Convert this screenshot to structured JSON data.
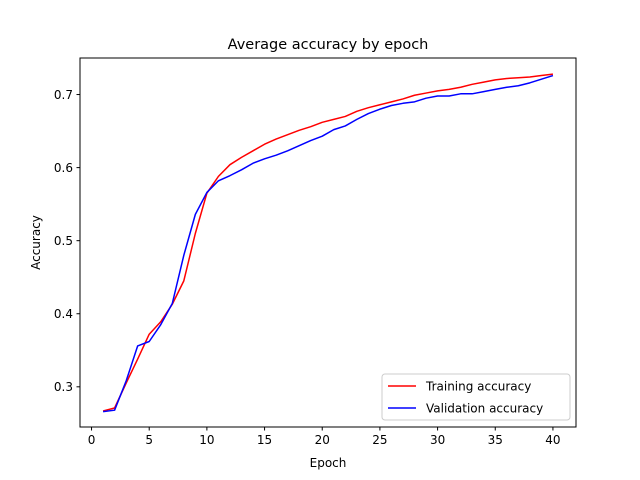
{
  "chart_data": {
    "type": "line",
    "title": "Average accuracy by epoch",
    "xlabel": "Epoch",
    "ylabel": "Accuracy",
    "xlim": [
      -1,
      42
    ],
    "ylim": [
      0.245,
      0.75
    ],
    "xticks": [
      0,
      5,
      10,
      15,
      20,
      25,
      30,
      35,
      40
    ],
    "yticks": [
      0.3,
      0.4,
      0.5,
      0.6,
      0.7
    ],
    "ytick_labels": [
      "0.3",
      "0.4",
      "0.5",
      "0.6",
      "0.7"
    ],
    "grid": false,
    "legend_position": "lower-right",
    "x": [
      1,
      2,
      3,
      4,
      5,
      6,
      7,
      8,
      9,
      10,
      11,
      12,
      13,
      14,
      15,
      16,
      17,
      18,
      19,
      20,
      21,
      22,
      23,
      24,
      25,
      26,
      27,
      28,
      29,
      30,
      31,
      32,
      33,
      34,
      35,
      36,
      37,
      38,
      39,
      40
    ],
    "series": [
      {
        "name": "Training accuracy",
        "color": "#ff0000",
        "values": [
          0.267,
          0.271,
          0.305,
          0.338,
          0.372,
          0.389,
          0.413,
          0.445,
          0.51,
          0.565,
          0.588,
          0.604,
          0.614,
          0.623,
          0.632,
          0.639,
          0.645,
          0.651,
          0.656,
          0.662,
          0.666,
          0.67,
          0.677,
          0.682,
          0.686,
          0.69,
          0.694,
          0.699,
          0.702,
          0.705,
          0.707,
          0.71,
          0.714,
          0.717,
          0.72,
          0.722,
          0.723,
          0.724,
          0.726,
          0.728
        ]
      },
      {
        "name": "Validation accuracy",
        "color": "#0000ff",
        "values": [
          0.266,
          0.268,
          0.308,
          0.356,
          0.362,
          0.385,
          0.414,
          0.48,
          0.536,
          0.566,
          0.582,
          0.589,
          0.597,
          0.606,
          0.612,
          0.617,
          0.623,
          0.63,
          0.637,
          0.643,
          0.652,
          0.657,
          0.666,
          0.674,
          0.68,
          0.685,
          0.688,
          0.69,
          0.695,
          0.698,
          0.698,
          0.701,
          0.701,
          0.704,
          0.707,
          0.71,
          0.712,
          0.716,
          0.721,
          0.726
        ]
      }
    ]
  }
}
